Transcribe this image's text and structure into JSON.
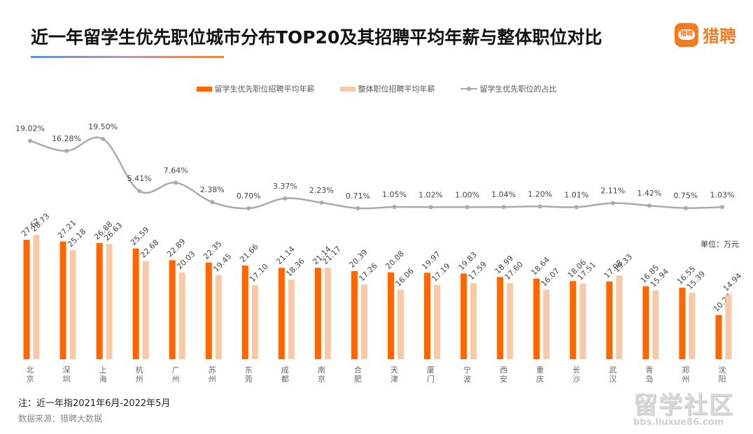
{
  "title": "近一年留学生优先职位城市分布TOP20及其招聘平均年薪与整体职位对比",
  "logo": {
    "badge_text": "猎聘",
    "text": "猎聘"
  },
  "unit_label": "单位：万元",
  "note": "注：近一年指2021年6月-2022年5月",
  "source": "数据来源：猎聘大数据",
  "watermark": {
    "main": "留学社区",
    "url": "bbs.liuxue86.com"
  },
  "colors": {
    "overseas_bar": "#ff6600",
    "overall_bar": "#f8c9a8",
    "line": "#aaaaaa",
    "logo": "#f47a20"
  },
  "chart_data": {
    "type": "bar",
    "title": "近一年留学生优先职位城市分布TOP20及其招聘平均年薪与整体职位对比",
    "xlabel": "",
    "ylabel": "万元",
    "legend_position": "top-center",
    "categories": [
      "北京",
      "深圳",
      "上海",
      "杭州",
      "广州",
      "苏州",
      "东莞",
      "成都",
      "南京",
      "合肥",
      "天津",
      "厦门",
      "宁波",
      "西安",
      "重庆",
      "长沙",
      "武汉",
      "青岛",
      "郑州",
      "沈阳"
    ],
    "series": [
      {
        "name": "留学生优先职位招聘平均年薪",
        "type": "bar",
        "color": "#ff6600",
        "values": [
          27.62,
          27.21,
          26.88,
          25.59,
          22.89,
          22.35,
          21.66,
          21.14,
          21.14,
          20.39,
          20.08,
          19.97,
          19.83,
          18.99,
          18.64,
          18.06,
          17.98,
          16.85,
          16.55,
          10.22
        ]
      },
      {
        "name": "整体职位招聘平均年薪",
        "type": "bar",
        "color": "#f8c9a8",
        "values": [
          28.73,
          25.18,
          26.63,
          22.68,
          20.03,
          19.45,
          17.1,
          18.36,
          21.17,
          17.26,
          16.06,
          17.19,
          17.59,
          17.6,
          16.07,
          17.51,
          19.33,
          15.94,
          15.39,
          14.94
        ]
      },
      {
        "name": "留学生优先职位的占比",
        "type": "line",
        "color": "#aaaaaa",
        "unit": "%",
        "values": [
          19.02,
          16.28,
          19.5,
          5.41,
          7.64,
          2.38,
          0.7,
          3.37,
          2.23,
          0.71,
          1.05,
          1.02,
          1.0,
          1.04,
          1.2,
          1.01,
          2.11,
          1.42,
          0.75,
          1.03
        ]
      }
    ],
    "ylim_bar": [
      0,
      30
    ],
    "ylim_line_percent": [
      0,
      20
    ],
    "grid": false
  }
}
